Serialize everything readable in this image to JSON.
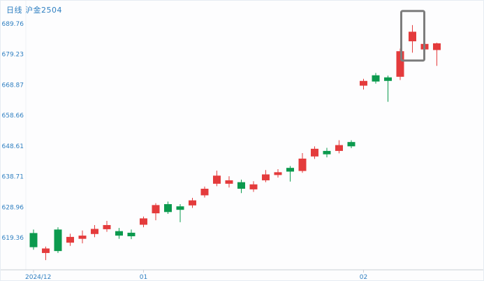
{
  "header": {
    "title": "日线 沪金2504"
  },
  "colors": {
    "up_candle": "#e43b3c",
    "down_candle": "#0b9a4e",
    "axis_text": "#2e7fc1",
    "title_text": "#2e7fc1",
    "axis_line": "#c9ced6",
    "highlight_box": "#7d7d7d",
    "background": "#fdfdfe"
  },
  "chart_data": {
    "type": "candlestick",
    "title": "日线 沪金2504",
    "period_label": "日线",
    "symbol_label": "沪金2504",
    "scale": "log",
    "grid": false,
    "legend": "none",
    "y_axis": {
      "ticks": [
        "689.76",
        "679.23",
        "668.87",
        "658.66",
        "648.61",
        "638.71",
        "628.96",
        "619.36"
      ],
      "top_value": 689.76,
      "bottom_value": 619.36
    },
    "x_axis": {
      "ticks": [
        {
          "label": "2024/12",
          "candle_index": 0,
          "align": "start"
        },
        {
          "label": "01",
          "candle_index": 9,
          "align": "middle"
        },
        {
          "label": "02",
          "candle_index": 27,
          "align": "middle"
        }
      ]
    },
    "candles": [
      {
        "o": 620.8,
        "h": 621.9,
        "l": 615.6,
        "c": 616.4
      },
      {
        "o": 614.6,
        "h": 616.6,
        "l": 612.4,
        "c": 616.0
      },
      {
        "o": 621.9,
        "h": 622.6,
        "l": 614.6,
        "c": 615.2
      },
      {
        "o": 617.8,
        "h": 620.6,
        "l": 616.8,
        "c": 619.6
      },
      {
        "o": 619.0,
        "h": 621.6,
        "l": 617.6,
        "c": 620.0
      },
      {
        "o": 620.5,
        "h": 623.3,
        "l": 619.5,
        "c": 622.1
      },
      {
        "o": 622.0,
        "h": 624.6,
        "l": 621.2,
        "c": 623.3
      },
      {
        "o": 621.4,
        "h": 622.4,
        "l": 619.0,
        "c": 620.0
      },
      {
        "o": 620.9,
        "h": 621.9,
        "l": 618.9,
        "c": 619.8
      },
      {
        "o": 623.4,
        "h": 626.0,
        "l": 622.6,
        "c": 625.4
      },
      {
        "o": 627.0,
        "h": 630.2,
        "l": 624.8,
        "c": 629.6
      },
      {
        "o": 629.9,
        "h": 630.7,
        "l": 626.8,
        "c": 627.4
      },
      {
        "o": 629.2,
        "h": 629.9,
        "l": 624.2,
        "c": 628.1
      },
      {
        "o": 629.5,
        "h": 631.9,
        "l": 628.7,
        "c": 631.1
      },
      {
        "o": 632.7,
        "h": 635.5,
        "l": 632.0,
        "c": 634.8
      },
      {
        "o": 636.4,
        "h": 640.6,
        "l": 635.6,
        "c": 639.0
      },
      {
        "o": 636.4,
        "h": 638.8,
        "l": 635.2,
        "c": 637.5
      },
      {
        "o": 636.9,
        "h": 637.7,
        "l": 633.4,
        "c": 634.8
      },
      {
        "o": 634.6,
        "h": 637.2,
        "l": 633.8,
        "c": 636.2
      },
      {
        "o": 637.5,
        "h": 640.8,
        "l": 636.9,
        "c": 639.4
      },
      {
        "o": 639.2,
        "h": 641.1,
        "l": 638.4,
        "c": 640.1
      },
      {
        "o": 641.5,
        "h": 642.1,
        "l": 637.1,
        "c": 640.3
      },
      {
        "o": 640.5,
        "h": 646.3,
        "l": 639.9,
        "c": 644.5
      },
      {
        "o": 645.2,
        "h": 648.5,
        "l": 644.4,
        "c": 647.7
      },
      {
        "o": 647.0,
        "h": 648.0,
        "l": 644.9,
        "c": 645.9
      },
      {
        "o": 647.0,
        "h": 650.5,
        "l": 646.2,
        "c": 648.9
      },
      {
        "o": 649.9,
        "h": 650.5,
        "l": 647.9,
        "c": 648.5
      },
      {
        "o": 668.6,
        "h": 670.9,
        "l": 667.3,
        "c": 670.2
      },
      {
        "o": 672.1,
        "h": 672.9,
        "l": 669.3,
        "c": 670.0
      },
      {
        "o": 671.4,
        "h": 672.0,
        "l": 663.2,
        "c": 670.2
      },
      {
        "o": 671.6,
        "h": 681.2,
        "l": 670.5,
        "c": 680.3
      },
      {
        "o": 683.7,
        "h": 689.3,
        "l": 679.8,
        "c": 687.0
      },
      {
        "o": 680.9,
        "h": 683.4,
        "l": 680.2,
        "c": 682.8
      },
      {
        "o": 680.7,
        "h": 683.2,
        "l": 675.3,
        "c": 683.0
      }
    ],
    "annotations": [
      {
        "type": "rect",
        "candle_index": 31,
        "top": 694.2,
        "bottom": 677.1,
        "pad_left": 16,
        "pad_right": 17,
        "stroke_width": 3
      }
    ]
  }
}
